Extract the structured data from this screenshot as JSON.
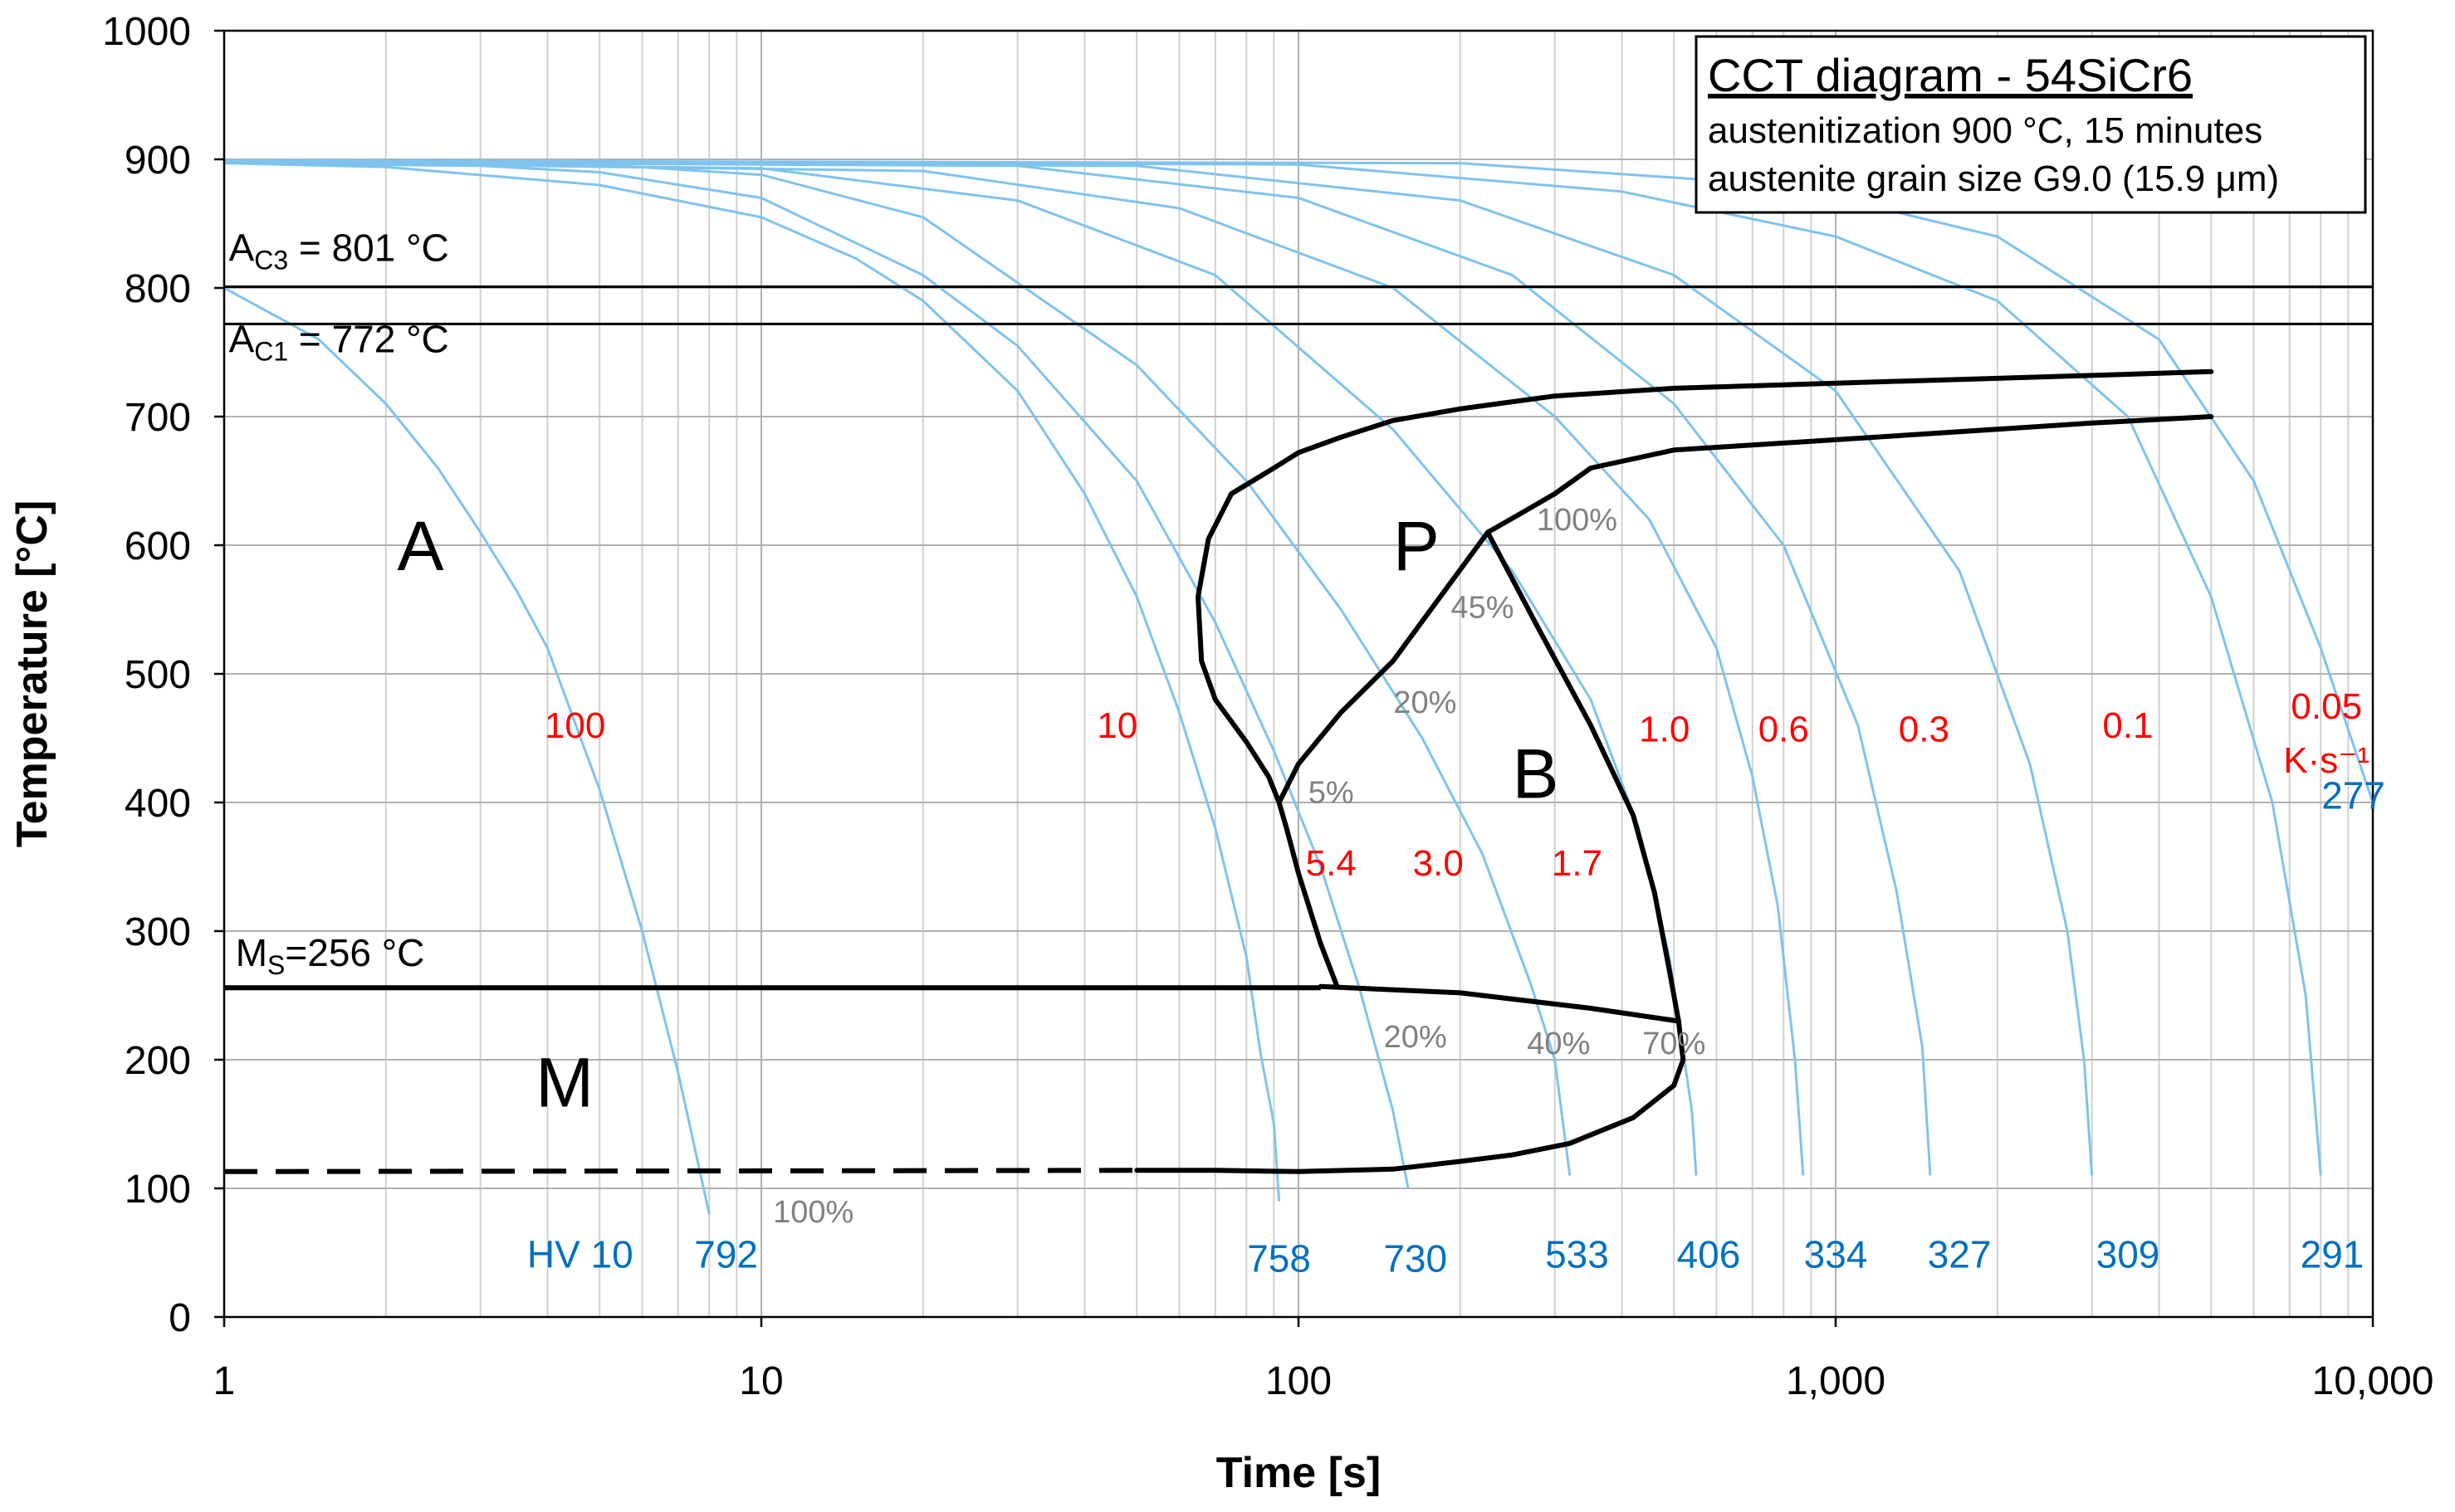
{
  "chart_data": {
    "type": "line",
    "title_box": {
      "title": "CCT diagram - 54SiCr6",
      "line1": "austenitization 900 °C, 15 minutes",
      "line2": "austenite grain size G9.0 (15.9 μm)"
    },
    "xlabel": "Time [s]",
    "ylabel": "Temperature [°C]",
    "xscale": "log",
    "xlim": [
      1,
      10000
    ],
    "ylim": [
      0,
      1000
    ],
    "x_ticks": [
      {
        "value": 1,
        "label": "1"
      },
      {
        "value": 10,
        "label": "10"
      },
      {
        "value": 100,
        "label": "100"
      },
      {
        "value": 1000,
        "label": "1,000"
      },
      {
        "value": 10000,
        "label": "10,000"
      }
    ],
    "y_ticks": [
      {
        "value": 0,
        "label": "0"
      },
      {
        "value": 100,
        "label": "100"
      },
      {
        "value": 200,
        "label": "200"
      },
      {
        "value": 300,
        "label": "300"
      },
      {
        "value": 400,
        "label": "400"
      },
      {
        "value": 500,
        "label": "500"
      },
      {
        "value": 600,
        "label": "600"
      },
      {
        "value": 700,
        "label": "700"
      },
      {
        "value": 800,
        "label": "800"
      },
      {
        "value": 900,
        "label": "900"
      },
      {
        "value": 1000,
        "label": "1000"
      }
    ],
    "critical_lines": [
      {
        "sym": "A",
        "sub": "C3",
        "rest": " = 801 °C",
        "temp": 801,
        "label_t": 1.02,
        "label_temp": 821
      },
      {
        "sym": "A",
        "sub": "C1",
        "rest": " = 772 °C",
        "temp": 772,
        "label_t": 1.02,
        "label_temp": 750
      }
    ],
    "ms_line": {
      "sym": "M",
      "sub": "S",
      "rest": "=256 °C",
      "temp": 256,
      "label_t": 1.05,
      "label_temp": 273
    },
    "phase_labels": [
      {
        "text": "A",
        "t": 2.1,
        "temp": 600
      },
      {
        "text": "P",
        "t": 150,
        "temp": 600
      },
      {
        "text": "B",
        "t": 250,
        "temp": 423
      },
      {
        "text": "M",
        "t": 3.8,
        "temp": 183
      }
    ],
    "cooling_curves": [
      {
        "rate": "100",
        "rate_label": {
          "t": 4.5,
          "temp": 460
        },
        "hardness": "792",
        "hv_label": {
          "t": 8.6,
          "temp": 48
        },
        "points": [
          [
            1,
            800
          ],
          [
            1.5,
            760
          ],
          [
            2,
            710
          ],
          [
            2.5,
            660
          ],
          [
            3,
            610
          ],
          [
            3.5,
            565
          ],
          [
            4,
            520
          ],
          [
            5,
            410
          ],
          [
            6,
            300
          ],
          [
            7,
            190
          ],
          [
            8,
            80
          ]
        ]
      },
      {
        "rate": "10",
        "rate_label": {
          "t": 46,
          "temp": 460
        },
        "hardness": "758",
        "hv_label": {
          "t": 92,
          "temp": 45
        },
        "points": [
          [
            1,
            897
          ],
          [
            2,
            894
          ],
          [
            5,
            880
          ],
          [
            10,
            855
          ],
          [
            15,
            823
          ],
          [
            20,
            790
          ],
          [
            30,
            720
          ],
          [
            40,
            640
          ],
          [
            50,
            560
          ],
          [
            60,
            470
          ],
          [
            70,
            380
          ],
          [
            80,
            280
          ],
          [
            85,
            205
          ],
          [
            90,
            150
          ],
          [
            92,
            90
          ]
        ]
      },
      {
        "rate": "5.4",
        "rate_label": {
          "t": 115,
          "temp": 353
        },
        "hardness": "730",
        "hv_label": {
          "t": 165,
          "temp": 45
        },
        "points": [
          [
            1,
            897
          ],
          [
            3,
            895
          ],
          [
            5,
            890
          ],
          [
            10,
            870
          ],
          [
            20,
            810
          ],
          [
            30,
            755
          ],
          [
            50,
            650
          ],
          [
            70,
            540
          ],
          [
            90,
            440
          ],
          [
            110,
            350
          ],
          [
            130,
            255
          ],
          [
            150,
            160
          ],
          [
            160,
            100
          ]
        ]
      },
      {
        "rate": "3.0",
        "rate_label": {
          "t": 182,
          "temp": 353
        },
        "hardness": "533",
        "hv_label": {
          "t": 330,
          "temp": 48
        },
        "points": [
          [
            1,
            898
          ],
          [
            5,
            896
          ],
          [
            10,
            888
          ],
          [
            20,
            855
          ],
          [
            50,
            740
          ],
          [
            80,
            650
          ],
          [
            120,
            550
          ],
          [
            170,
            450
          ],
          [
            220,
            360
          ],
          [
            270,
            260
          ],
          [
            300,
            200
          ],
          [
            320,
            110
          ]
        ]
      },
      {
        "rate": "1.7",
        "rate_label": {
          "t": 330,
          "temp": 353
        },
        "hardness": "406",
        "hv_label": {
          "t": 580,
          "temp": 48
        },
        "points": [
          [
            1,
            898
          ],
          [
            10,
            893
          ],
          [
            30,
            868
          ],
          [
            70,
            810
          ],
          [
            150,
            690
          ],
          [
            250,
            580
          ],
          [
            350,
            480
          ],
          [
            430,
            380
          ],
          [
            490,
            280
          ],
          [
            540,
            160
          ],
          [
            550,
            110
          ]
        ]
      },
      {
        "rate": "1.0",
        "rate_label": {
          "t": 480,
          "temp": 457
        },
        "hardness": "334",
        "hv_label": {
          "t": 1000,
          "temp": 48
        },
        "points": [
          [
            1,
            898
          ],
          [
            20,
            891
          ],
          [
            60,
            862
          ],
          [
            150,
            800
          ],
          [
            300,
            700
          ],
          [
            450,
            620
          ],
          [
            600,
            520
          ],
          [
            700,
            420
          ],
          [
            780,
            320
          ],
          [
            840,
            200
          ],
          [
            870,
            110
          ]
        ]
      },
      {
        "rate": "0.6",
        "rate_label": {
          "t": 800,
          "temp": 457
        },
        "hardness": "327",
        "hv_label": {
          "t": 1700,
          "temp": 48
        },
        "points": [
          [
            1,
            898
          ],
          [
            30,
            895
          ],
          [
            100,
            870
          ],
          [
            250,
            810
          ],
          [
            500,
            710
          ],
          [
            800,
            600
          ],
          [
            1100,
            460
          ],
          [
            1300,
            330
          ],
          [
            1450,
            210
          ],
          [
            1500,
            110
          ]
        ]
      },
      {
        "rate": "0.3",
        "rate_label": {
          "t": 1460,
          "temp": 457
        },
        "hardness": "309",
        "hv_label": {
          "t": 3500,
          "temp": 48
        },
        "points": [
          [
            1,
            898
          ],
          [
            50,
            895
          ],
          [
            200,
            868
          ],
          [
            500,
            810
          ],
          [
            1000,
            720
          ],
          [
            1700,
            580
          ],
          [
            2300,
            430
          ],
          [
            2700,
            300
          ],
          [
            2900,
            200
          ],
          [
            3000,
            110
          ]
        ]
      },
      {
        "rate": "0.1",
        "rate_label": {
          "t": 3500,
          "temp": 460
        },
        "hardness": "291",
        "hv_label": {
          "t": 8400,
          "temp": 48
        },
        "points": [
          [
            1,
            899
          ],
          [
            100,
            896
          ],
          [
            400,
            875
          ],
          [
            1000,
            840
          ],
          [
            2000,
            790
          ],
          [
            3500,
            700
          ],
          [
            5000,
            560
          ],
          [
            6500,
            400
          ],
          [
            7500,
            250
          ],
          [
            8000,
            110
          ]
        ]
      },
      {
        "rate": "0.05",
        "rate_label": {
          "t": 8200,
          "temp": 475
        },
        "hardness": "277",
        "hv_label": {
          "t": 9200,
          "temp": 405
        },
        "points": [
          [
            1,
            899
          ],
          [
            200,
            897
          ],
          [
            800,
            880
          ],
          [
            2000,
            840
          ],
          [
            4000,
            760
          ],
          [
            6000,
            650
          ],
          [
            8000,
            520
          ],
          [
            10000,
            400
          ]
        ]
      }
    ],
    "rate_unit": {
      "text": "K·s⁻¹",
      "t": 8200,
      "temp": 433
    },
    "hv_prefix": {
      "text": "HV 10",
      "t": 4.6,
      "temp": 48
    },
    "percent_labels": [
      {
        "text": "100%",
        "t": 330,
        "temp": 620
      },
      {
        "text": "45%",
        "t": 220,
        "temp": 552
      },
      {
        "text": "20%",
        "t": 172,
        "temp": 478
      },
      {
        "text": "5%",
        "t": 115,
        "temp": 408
      },
      {
        "text": "20%",
        "t": 165,
        "temp": 218
      },
      {
        "text": "40%",
        "t": 305,
        "temp": 213
      },
      {
        "text": "70%",
        "t": 500,
        "temp": 213
      },
      {
        "text": "100%",
        "t": 12.5,
        "temp": 82
      }
    ],
    "transformation_lines": [
      {
        "name": "pearlite-start",
        "dashed": false,
        "points": [
          [
            5000,
            735
          ],
          [
            3000,
            732
          ],
          [
            1000,
            726
          ],
          [
            500,
            722
          ],
          [
            300,
            716
          ],
          [
            200,
            706
          ],
          [
            150,
            697
          ],
          [
            120,
            684
          ],
          [
            100,
            672
          ],
          [
            90,
            660
          ],
          [
            75,
            640
          ],
          [
            68,
            605
          ],
          [
            65,
            560
          ],
          [
            66,
            510
          ],
          [
            70,
            480
          ],
          [
            80,
            447
          ],
          [
            88,
            420
          ],
          [
            92,
            400
          ],
          [
            95,
            380
          ],
          [
            100,
            345
          ],
          [
            110,
            290
          ],
          [
            118,
            257
          ]
        ]
      },
      {
        "name": "pearlite-finish",
        "dashed": false,
        "points": [
          [
            5000,
            700
          ],
          [
            3000,
            695
          ],
          [
            1000,
            682
          ],
          [
            500,
            674
          ],
          [
            350,
            660
          ],
          [
            300,
            640
          ],
          [
            260,
            625
          ],
          [
            225,
            610
          ]
        ]
      },
      {
        "name": "bainite-start",
        "dashed": false,
        "points": [
          [
            225,
            610
          ],
          [
            180,
            555
          ],
          [
            150,
            510
          ],
          [
            120,
            470
          ],
          [
            100,
            430
          ],
          [
            92,
            400
          ]
        ]
      },
      {
        "name": "bainite-finish",
        "dashed": false,
        "points": [
          [
            225,
            610
          ],
          [
            280,
            535
          ],
          [
            350,
            460
          ],
          [
            420,
            390
          ],
          [
            460,
            330
          ],
          [
            490,
            270
          ],
          [
            510,
            230
          ]
        ]
      },
      {
        "name": "martensite-finish",
        "dashed": false,
        "points": [
          [
            110,
            257
          ],
          [
            200,
            252
          ],
          [
            350,
            240
          ],
          [
            510,
            230
          ],
          [
            520,
            200
          ],
          [
            500,
            180
          ],
          [
            420,
            155
          ],
          [
            320,
            135
          ],
          [
            250,
            126
          ],
          [
            200,
            121
          ],
          [
            150,
            115
          ],
          [
            100,
            113
          ],
          [
            70,
            114
          ],
          [
            50,
            114
          ]
        ]
      },
      {
        "name": "martensite-finish-dashed",
        "dashed": true,
        "points": [
          [
            1,
            113
          ],
          [
            50,
            114
          ]
        ]
      }
    ]
  }
}
